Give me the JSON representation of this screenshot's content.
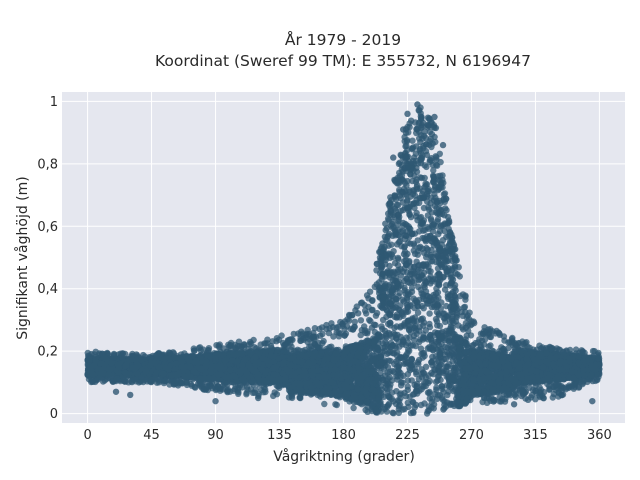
{
  "chart_data": {
    "type": "scatter",
    "title_line1": "År 1979 - 2019",
    "title_line2": "Koordinat (Sweref 99 TM): E 355732, N 6196947",
    "xlabel": "Vågriktning (grader)",
    "ylabel": "Signifikant våghöjd (m)",
    "xlim": [
      -18,
      378
    ],
    "ylim": [
      -0.03,
      1.03
    ],
    "x_ticks": [
      0,
      45,
      90,
      135,
      180,
      225,
      270,
      315,
      360
    ],
    "x_tick_labels": [
      "0",
      "45",
      "90",
      "135",
      "180",
      "225",
      "270",
      "315",
      "360"
    ],
    "y_ticks": [
      0,
      0.2,
      0.4,
      0.6,
      0.8,
      1
    ],
    "y_tick_labels": [
      "0",
      "0,2",
      "0,4",
      "0,6",
      "0,8",
      "1"
    ],
    "grid": true,
    "marker_color": "#2f5873",
    "background_color": "#e5e7ef",
    "envelope": {
      "x": [
        0,
        45,
        90,
        135,
        180,
        200,
        215,
        225,
        235,
        245,
        255,
        270,
        300,
        330,
        360
      ],
      "y_upper": [
        0.2,
        0.19,
        0.22,
        0.25,
        0.3,
        0.4,
        0.75,
        0.93,
        0.99,
        0.92,
        0.6,
        0.3,
        0.24,
        0.21,
        0.2
      ],
      "y_lower": [
        0.1,
        0.1,
        0.07,
        0.05,
        0.02,
        0.0,
        0.0,
        0.0,
        0.0,
        0.0,
        0.02,
        0.03,
        0.04,
        0.05,
        0.11
      ]
    },
    "sample_points": [
      {
        "x": 232,
        "y": 0.99
      },
      {
        "x": 225,
        "y": 0.96
      },
      {
        "x": 244,
        "y": 0.95
      },
      {
        "x": 222,
        "y": 0.91
      },
      {
        "x": 215,
        "y": 0.82
      },
      {
        "x": 250,
        "y": 0.86
      },
      {
        "x": 20,
        "y": 0.07
      },
      {
        "x": 30,
        "y": 0.06
      },
      {
        "x": 90,
        "y": 0.04
      },
      {
        "x": 120,
        "y": 0.05
      },
      {
        "x": 300,
        "y": 0.03
      },
      {
        "x": 355,
        "y": 0.04
      }
    ]
  }
}
